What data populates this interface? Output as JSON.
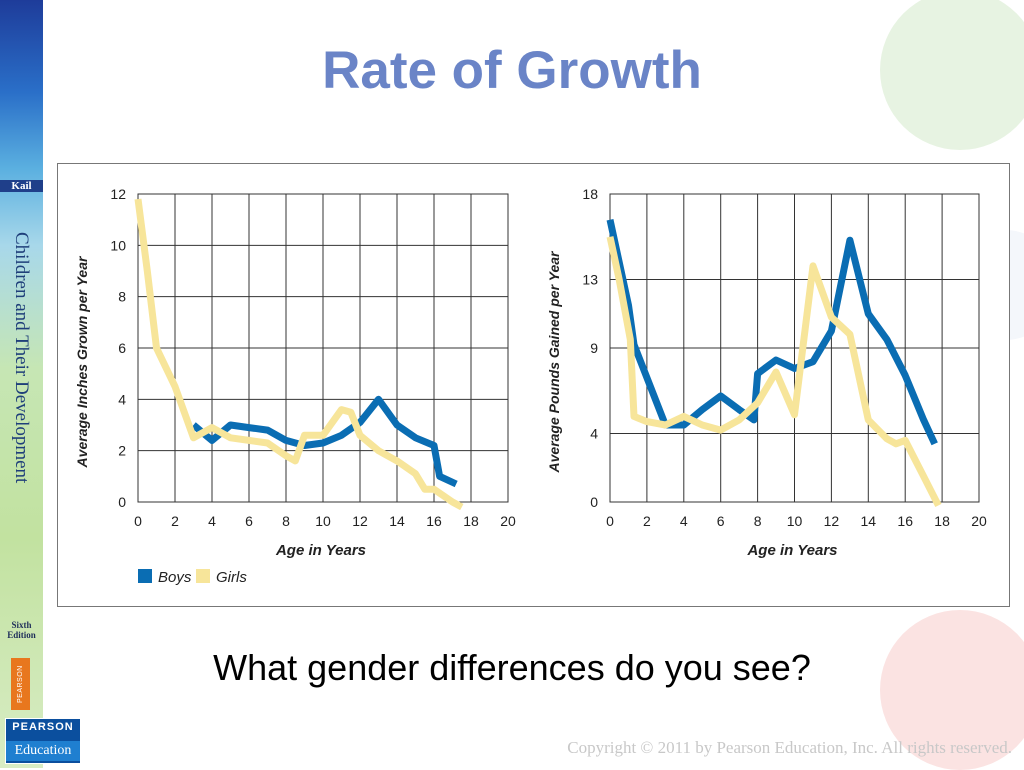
{
  "slide": {
    "title": "Rate of Growth",
    "question": "What gender differences do you see?",
    "copyright": "Copyright © 2011 by Pearson Education, Inc. All rights reserved."
  },
  "sidebar": {
    "author": "Kail",
    "book_title": "Children and Their Development",
    "edition_line1": "Sixth",
    "edition_line2": "Edition",
    "publisher_tab": "PEARSON",
    "logo_line1": "PEARSON",
    "logo_line2": "Education"
  },
  "colors": {
    "boys": "#0a6db3",
    "girls": "#f7e59a",
    "title": "#6a84c7",
    "axis_text": "#222222"
  },
  "chart_data": [
    {
      "type": "line",
      "xlabel": "Age in Years",
      "ylabel": "Average Inches Grown per Year",
      "xlim": [
        0,
        20
      ],
      "ylim": [
        0,
        12
      ],
      "xticks": [
        0,
        2,
        4,
        6,
        8,
        10,
        12,
        14,
        16,
        18,
        20
      ],
      "yticks": [
        0,
        2,
        4,
        6,
        8,
        10,
        12
      ],
      "grid": true,
      "legend": "bottom-left",
      "series": [
        {
          "name": "Boys",
          "color": "#0a6db3",
          "x": [
            3,
            4,
            5,
            6,
            7,
            8,
            9,
            10,
            11,
            12,
            13,
            14,
            15,
            16,
            16.3,
            17.2
          ],
          "y": [
            3.0,
            2.4,
            3.0,
            2.9,
            2.8,
            2.4,
            2.2,
            2.3,
            2.6,
            3.1,
            4.0,
            3.0,
            2.5,
            2.2,
            1.0,
            0.7
          ]
        },
        {
          "name": "Girls",
          "color": "#f7e59a",
          "x": [
            0,
            0.5,
            1,
            2,
            3,
            4,
            5,
            6,
            7,
            8,
            8.5,
            9,
            10,
            11,
            11.5,
            12,
            13,
            14,
            15,
            15.5,
            16,
            17,
            17.5
          ],
          "y": [
            11.8,
            9.0,
            6.0,
            4.5,
            2.5,
            2.9,
            2.5,
            2.4,
            2.3,
            1.8,
            1.6,
            2.6,
            2.6,
            3.6,
            3.5,
            2.6,
            2.0,
            1.6,
            1.1,
            0.5,
            0.5,
            0.0,
            -0.2
          ]
        }
      ]
    },
    {
      "type": "line",
      "xlabel": "Age in Years",
      "ylabel": "Average Pounds Gained per Year",
      "xlim": [
        0,
        20
      ],
      "ylim": [
        0,
        18
      ],
      "xticks": [
        0,
        2,
        4,
        6,
        8,
        10,
        12,
        14,
        16,
        18,
        20
      ],
      "yticks": [
        0,
        4,
        9,
        13,
        18
      ],
      "grid": true,
      "series": [
        {
          "name": "Boys",
          "color": "#0a6db3",
          "x": [
            0,
            1,
            1.3,
            3,
            4,
            5,
            6,
            7,
            7.8,
            8,
            9,
            10,
            11,
            12,
            13,
            14,
            15,
            16,
            17,
            17.6
          ],
          "y": [
            16.5,
            11.5,
            9.2,
            4.5,
            4.5,
            5.4,
            6.2,
            5.4,
            4.8,
            7.5,
            8.3,
            7.8,
            8.2,
            10,
            15.3,
            11,
            9.5,
            7.4,
            4.8,
            3.4
          ]
        },
        {
          "name": "Girls",
          "color": "#f7e59a",
          "x": [
            0,
            0.5,
            1.1,
            1.3,
            2,
            3,
            4,
            5,
            6,
            7,
            8,
            9,
            10,
            11,
            12,
            13,
            14,
            15,
            15.5,
            16,
            17,
            17.8
          ],
          "y": [
            15.5,
            13,
            9.5,
            5,
            4.7,
            4.5,
            5,
            4.5,
            4.2,
            4.8,
            5.8,
            7.6,
            5.1,
            13.8,
            10.8,
            9.8,
            4.8,
            3.7,
            3.4,
            3.6,
            1.5,
            -0.2
          ]
        }
      ]
    }
  ]
}
